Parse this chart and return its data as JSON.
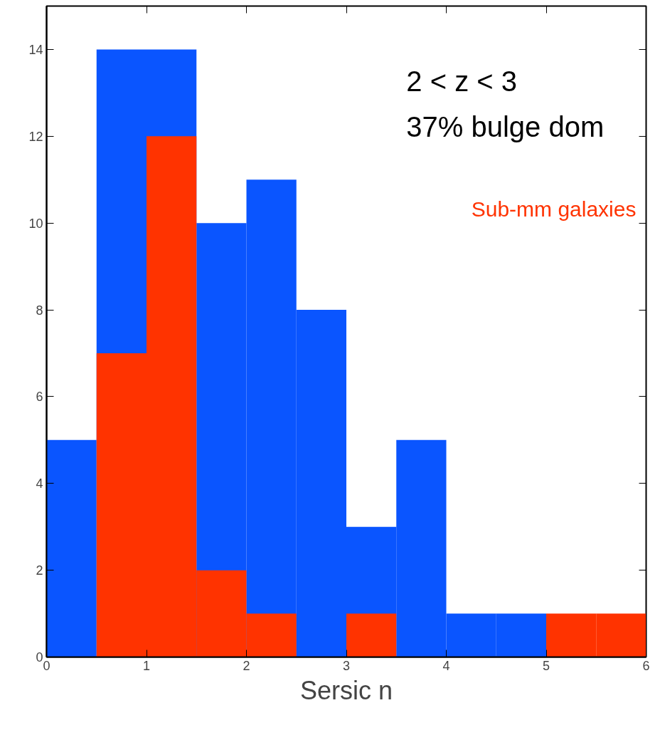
{
  "chart_data": {
    "type": "histogram",
    "xlabel": "Sersic n",
    "bins": [
      0,
      0.5,
      1,
      1.5,
      2,
      2.5,
      3,
      3.5,
      4,
      4.5,
      5,
      5.5,
      6
    ],
    "series": [
      {
        "color": "#0a55ff",
        "values": [
          5,
          14,
          14,
          10,
          11,
          8,
          3,
          5,
          1,
          1,
          null,
          null
        ]
      },
      {
        "name": "Sub-mm galaxies",
        "color": "#ff3300",
        "values": [
          0,
          7,
          12,
          2,
          1,
          0,
          1,
          0,
          0,
          0,
          1,
          1
        ]
      }
    ],
    "annotations": [
      "2 < z < 3",
      "37% bulge dom"
    ],
    "xlim": [
      0,
      6
    ],
    "ylim": [
      0,
      15
    ],
    "xticks": [
      0,
      1,
      2,
      3,
      4,
      5,
      6
    ],
    "yticks": [
      0,
      2,
      4,
      6,
      8,
      10,
      12,
      14
    ],
    "grid": false
  }
}
